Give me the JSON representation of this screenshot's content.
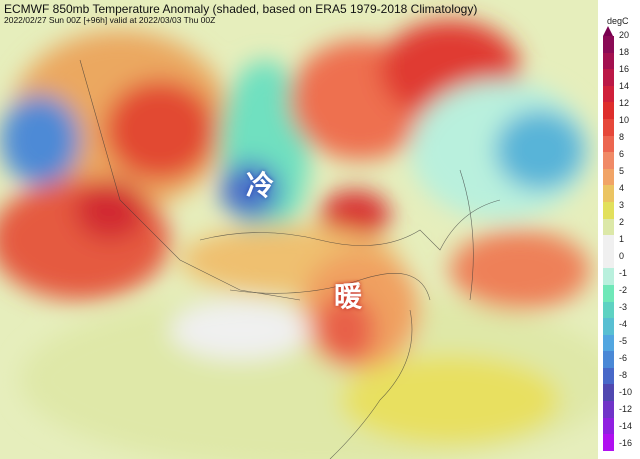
{
  "title": "ECMWF 850mb Temperature Anomaly (shaded, based on ERA5 1979-2018 Climatology)",
  "subtitle": "2022/02/27 Sun 00Z [+96h] valid at 2022/03/03 Thu 00Z",
  "annotations": {
    "cold": "冷",
    "warm": "暖"
  },
  "colorbar": {
    "unit": "degC",
    "labels": [
      "20",
      "18",
      "16",
      "14",
      "12",
      "10",
      "8",
      "6",
      "5",
      "4",
      "3",
      "2",
      "1",
      "0",
      "-1",
      "-2",
      "-3",
      "-4",
      "-5",
      "-6",
      "-8",
      "-10",
      "-12",
      "-14",
      "-16"
    ],
    "colors": [
      "#8a0a55",
      "#a3104f",
      "#bb1846",
      "#d0203a",
      "#de2e2c",
      "#e6483a",
      "#ec6650",
      "#f08a66",
      "#f1a466",
      "#ebc462",
      "#e2e05c",
      "#dce8a8",
      "#f0f0f0",
      "#f0f0f0",
      "#b9f0dd",
      "#6fe8b8",
      "#5ed2c2",
      "#58bfd2",
      "#52a6e0",
      "#4a88d6",
      "#4868c8",
      "#5048b0",
      "#7034c8",
      "#9020e0",
      "#b010f0"
    ]
  }
}
